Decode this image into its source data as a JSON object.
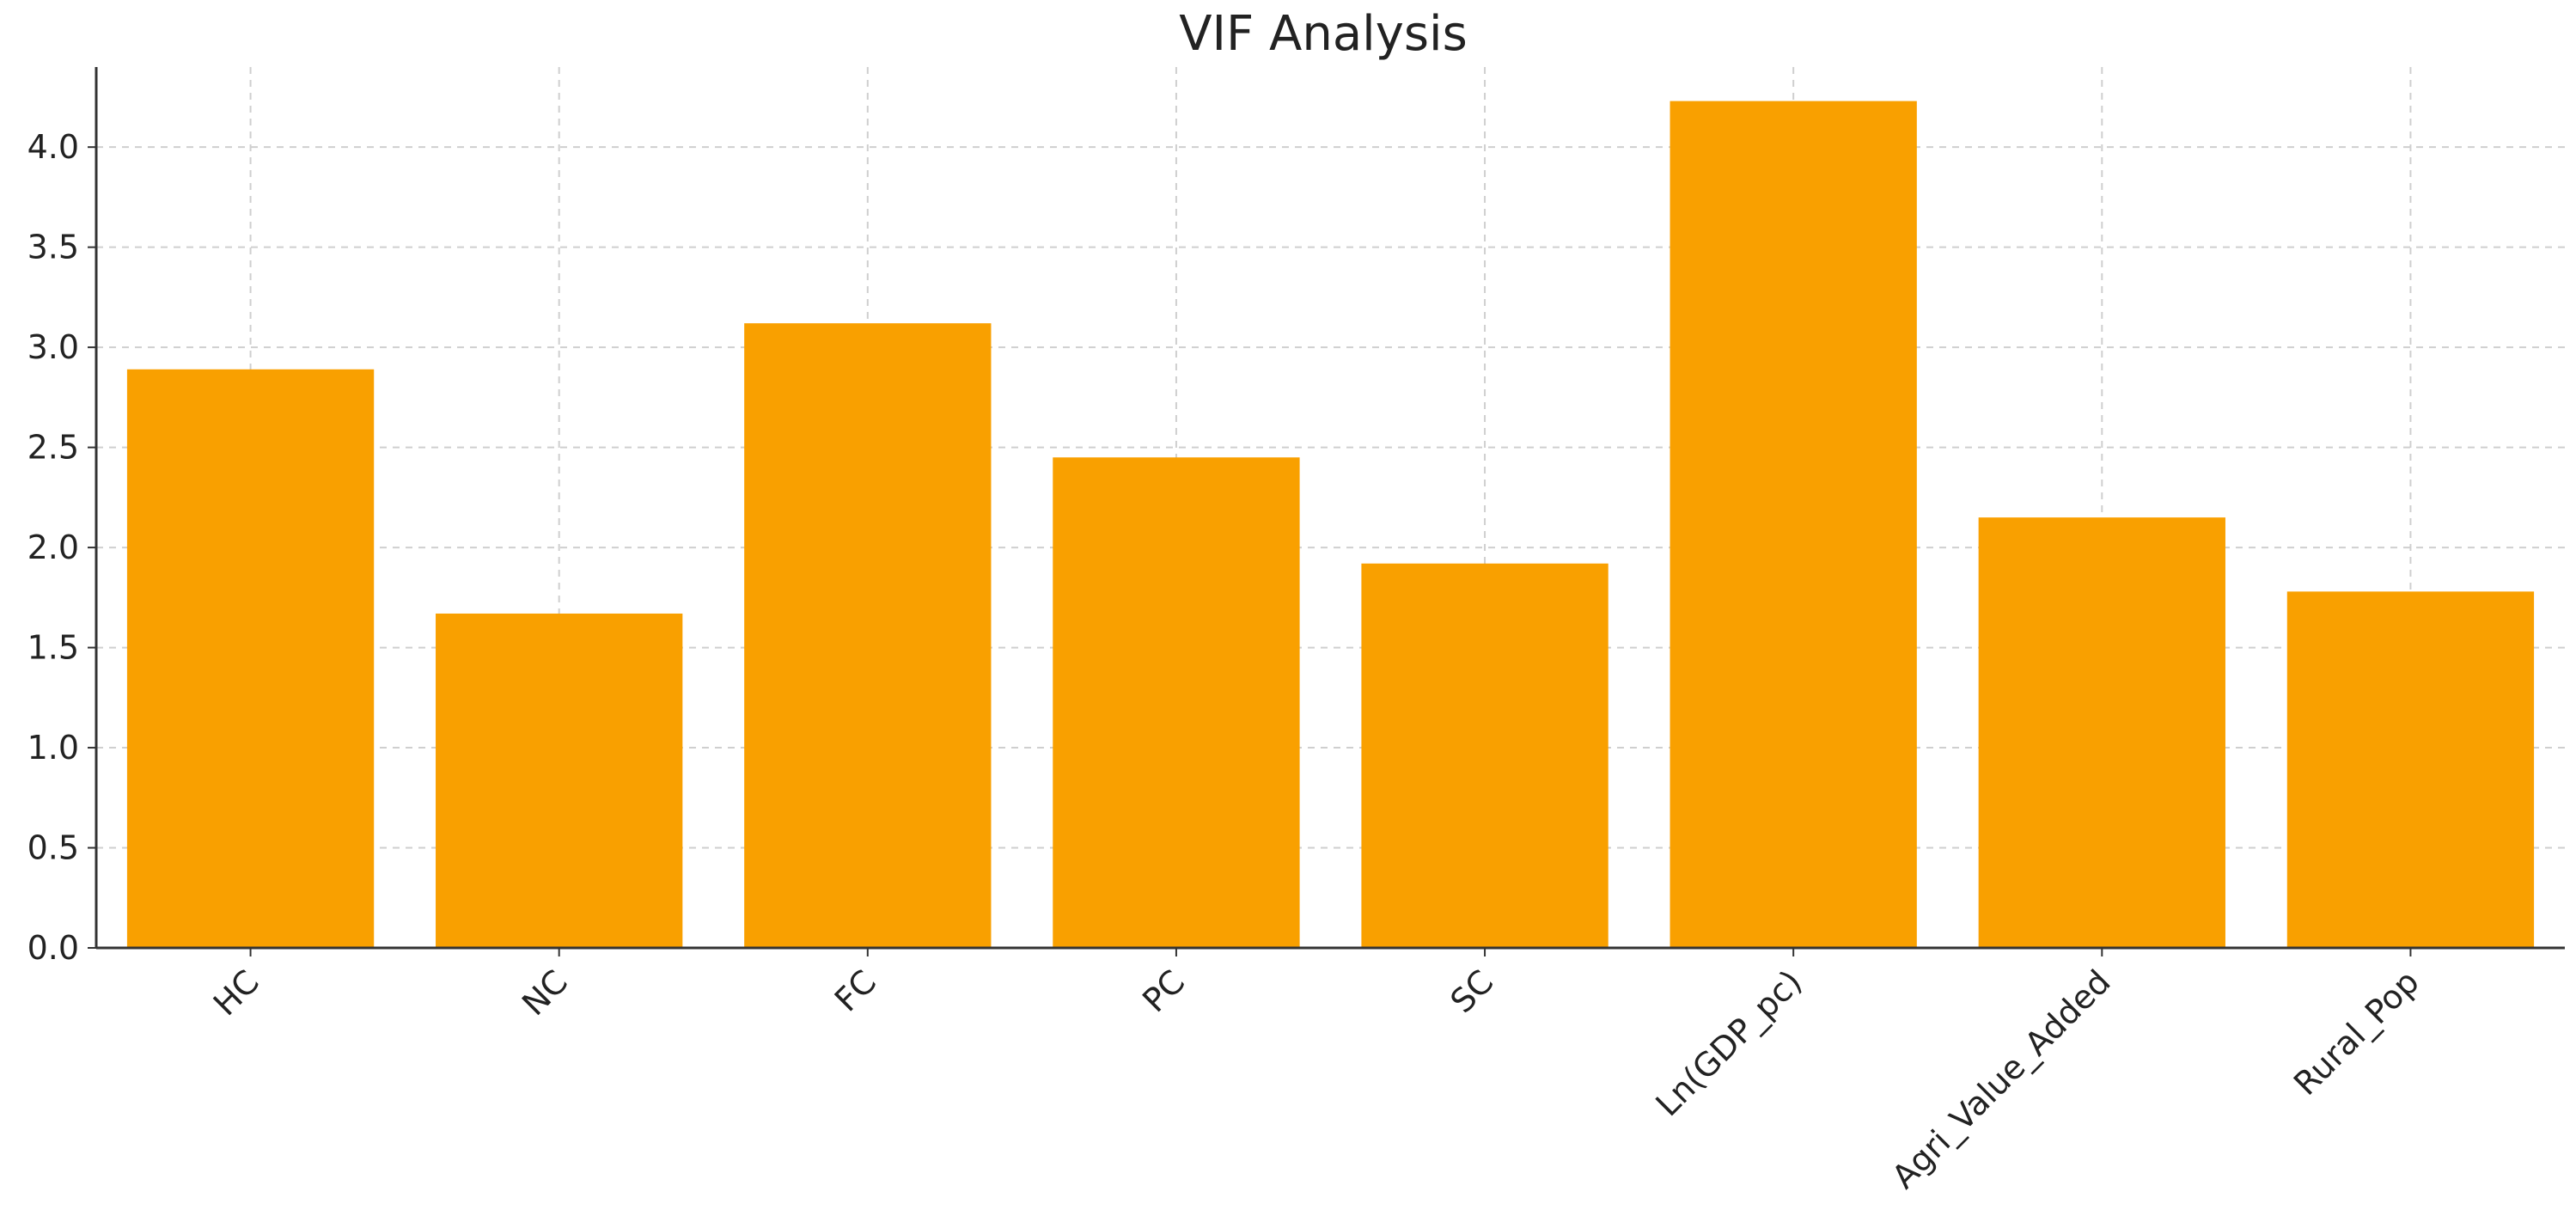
{
  "chart_data": {
    "type": "bar",
    "title": "VIF Analysis",
    "xlabel": "",
    "ylabel": "",
    "categories": [
      "HC",
      "NC",
      "FC",
      "PC",
      "SC",
      "Ln(GDP_pc)",
      "Agri_Value_Added",
      "Rural_Pop"
    ],
    "values": [
      2.89,
      1.67,
      3.12,
      2.45,
      1.92,
      4.23,
      2.15,
      1.78
    ],
    "ylim": [
      0,
      4.4
    ],
    "yticks": [
      0.0,
      0.5,
      1.0,
      1.5,
      2.0,
      2.5,
      3.0,
      3.5,
      4.0
    ],
    "ytick_labels": [
      "0.0",
      "0.5",
      "1.0",
      "1.5",
      "2.0",
      "2.5",
      "3.0",
      "3.5",
      "4.0"
    ],
    "grid": true,
    "bar_color": "#f9a000",
    "grid_color": "#cfcfcf",
    "axis_color": "#333333"
  }
}
